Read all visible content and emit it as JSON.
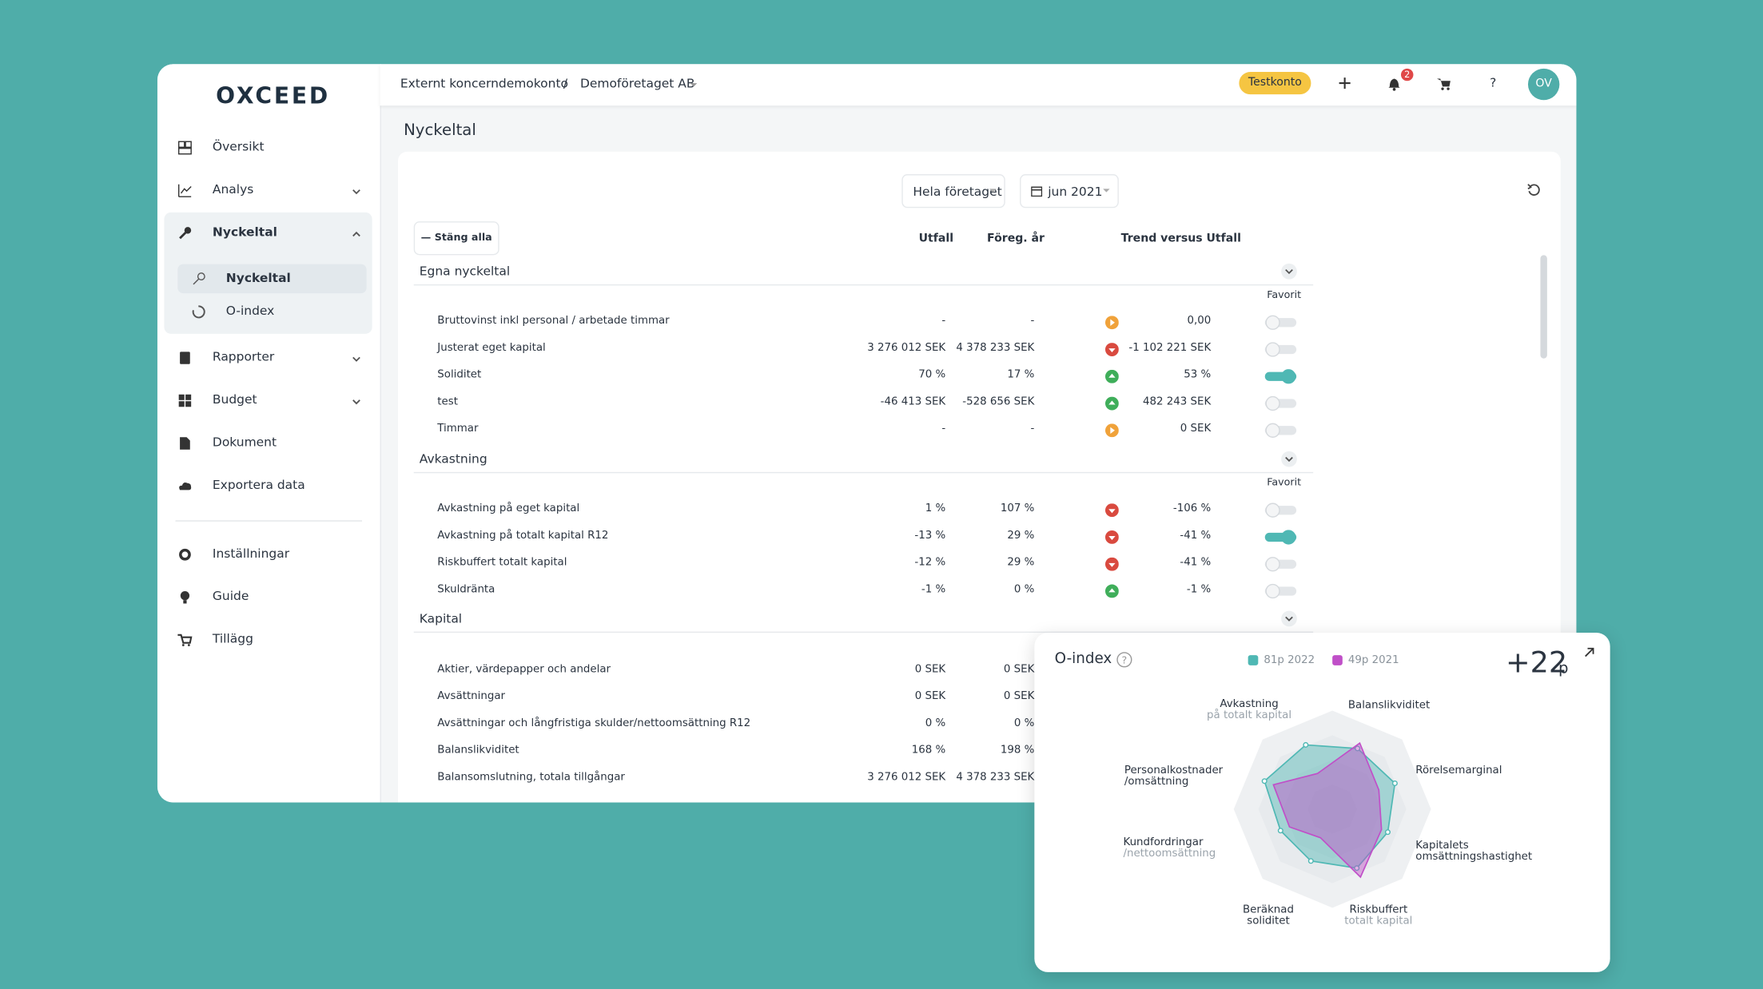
{
  "logo": "OXCEED",
  "sidebar": {
    "main": [
      {
        "label": "Översikt"
      },
      {
        "label": "Analys",
        "expanded": false
      },
      {
        "label": "Nyckeltal",
        "expanded": true,
        "children": [
          {
            "label": "Nyckeltal",
            "active": true
          },
          {
            "label": "O-index"
          }
        ]
      },
      {
        "label": "Rapporter",
        "expanded": false
      },
      {
        "label": "Budget",
        "expanded": false
      },
      {
        "label": "Dokument"
      },
      {
        "label": "Exportera data"
      }
    ],
    "bottom": [
      {
        "label": "Inställningar"
      },
      {
        "label": "Guide"
      },
      {
        "label": "Tillägg"
      }
    ]
  },
  "topbar": {
    "breadcrumb": [
      "Externt koncerndemokonto",
      "/",
      "Demoföretaget AB"
    ],
    "badge": "Testkonto",
    "notifications": "2",
    "help": "?",
    "avatar": "OV"
  },
  "page_title": "Nyckeltal",
  "filters": [
    "Hela företaget",
    "jun 2021"
  ],
  "collapse_button": "— Stäng alla",
  "columns": [
    "Utfall",
    "Föreg. år",
    "Trend versus Utfall"
  ],
  "favorite_label": "Favorit",
  "sections": [
    {
      "title": "Egna nyckeltal",
      "rows": [
        {
          "name": "Bruttovinst inkl personal / arbetade timmar",
          "actual": "-",
          "previous": "-",
          "trend": "neutral",
          "trend_value": "0,00",
          "favorite": false
        },
        {
          "name": "Justerat eget kapital",
          "actual": "3 276 012 SEK",
          "previous": "4 378 233 SEK",
          "trend": "down",
          "trend_value": "-1 102 221 SEK",
          "favorite": false
        },
        {
          "name": "Soliditet",
          "actual": "70 %",
          "previous": "17 %",
          "trend": "up",
          "trend_value": "53 %",
          "favorite": true
        },
        {
          "name": "test",
          "actual": "-46 413 SEK",
          "previous": "-528 656 SEK",
          "trend": "up",
          "trend_value": "482 243 SEK",
          "favorite": false
        },
        {
          "name": "Timmar",
          "actual": "-",
          "previous": "-",
          "trend": "neutral",
          "trend_value": "0 SEK",
          "favorite": false
        }
      ]
    },
    {
      "title": "Avkastning",
      "rows": [
        {
          "name": "Avkastning på eget kapital",
          "actual": "1 %",
          "previous": "107 %",
          "trend": "down",
          "trend_value": "-106 %",
          "favorite": false
        },
        {
          "name": "Avkastning på totalt kapital R12",
          "actual": "-13 %",
          "previous": "29 %",
          "trend": "down",
          "trend_value": "-41 %",
          "favorite": true
        },
        {
          "name": "Riskbuffert totalt kapital",
          "actual": "-12 %",
          "previous": "29 %",
          "trend": "down",
          "trend_value": "-41 %",
          "favorite": false
        },
        {
          "name": "Skuldränta",
          "actual": "-1 %",
          "previous": "0 %",
          "trend": "up",
          "trend_value": "-1 %",
          "favorite": false
        }
      ]
    },
    {
      "title": "Kapital",
      "rows": [
        {
          "name": "Aktier, värdepapper och andelar",
          "actual": "0 SEK",
          "previous": "0 SEK"
        },
        {
          "name": "Avsättningar",
          "actual": "0 SEK",
          "previous": "0 SEK"
        },
        {
          "name": "Avsättningar och långfristiga skulder/nettoomsättning R12",
          "actual": "0 %",
          "previous": "0 %"
        },
        {
          "name": "Balanslikviditet",
          "actual": "168 %",
          "previous": "198 %"
        },
        {
          "name": "Balansomslutning, totala tillgångar",
          "actual": "3 276 012 SEK",
          "previous": "4 378 233 SEK"
        }
      ]
    }
  ],
  "o_index": {
    "title": "O-index",
    "score": "+22",
    "score_unit": "p",
    "radar": {
      "type": "radar",
      "axes": [
        {
          "lines": [
            "Avkastning"
          ],
          "sub": "på totalt kapital"
        },
        {
          "lines": [
            "Balanslikviditet"
          ]
        },
        {
          "lines": [
            "Rörelsemarginal"
          ]
        },
        {
          "lines": [
            "Kapitalets",
            "omsättningshastighet"
          ]
        },
        {
          "lines": [
            "Riskbuffert"
          ],
          "sub": "totalt kapital"
        },
        {
          "lines": [
            "Beräknad",
            "soliditet"
          ]
        },
        {
          "lines": [
            "Kundfordringar"
          ],
          "sub": "/nettoomsättning"
        },
        {
          "lines": [
            "Personalkostnader",
            "/omsättning"
          ]
        }
      ],
      "rlim": [
        0,
        100
      ],
      "series": [
        {
          "name": "81p 2022",
          "color": "#4fb8b4",
          "values": [
            72,
            68,
            70,
            62,
            66,
            58,
            58,
            76
          ]
        },
        {
          "name": "49p 2021",
          "color": "#c04fc8",
          "values": [
            40,
            74,
            52,
            55,
            76,
            32,
            48,
            66
          ]
        }
      ]
    }
  }
}
